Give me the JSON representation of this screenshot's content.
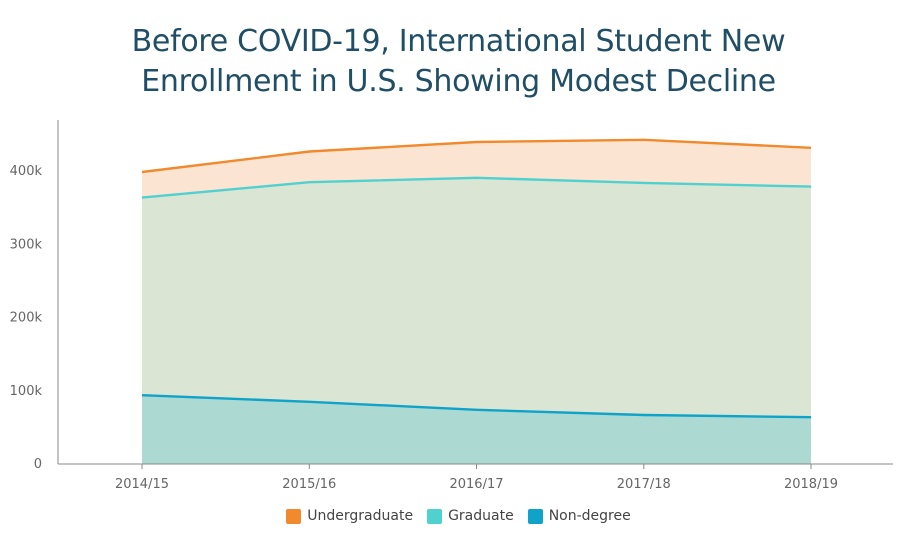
{
  "chart_data": {
    "type": "area",
    "title_lines": [
      "Before COVID-19, International Student New",
      "Enrollment in U.S. Showing Modest Decline"
    ],
    "categories": [
      "2014/15",
      "2015/16",
      "2016/17",
      "2017/18",
      "2018/19"
    ],
    "series": [
      {
        "name": "Non-degree",
        "values": [
          94000,
          85000,
          74000,
          67000,
          64000
        ],
        "color": "#0fa3c9",
        "fill": "#acd9d2"
      },
      {
        "name": "Graduate",
        "values": [
          364000,
          385000,
          391000,
          384000,
          379000
        ],
        "color": "#4fd1cf",
        "fill": "#dbe5d3"
      },
      {
        "name": "Undergraduate",
        "values": [
          399000,
          427000,
          440000,
          443000,
          432000
        ],
        "color": "#f08a2c",
        "fill": "#fce4d3"
      }
    ],
    "stacking": "cumulative (lines show running totals)",
    "yticks": [
      "0",
      "100k",
      "200k",
      "300k",
      "400k"
    ],
    "ytick_values": [
      0,
      100000,
      200000,
      300000,
      400000
    ],
    "ylim": [
      0,
      470000
    ],
    "grid": false,
    "legend_placement": "bottom-center",
    "legend": [
      "Undergraduate",
      "Graduate",
      "Non-degree"
    ]
  }
}
